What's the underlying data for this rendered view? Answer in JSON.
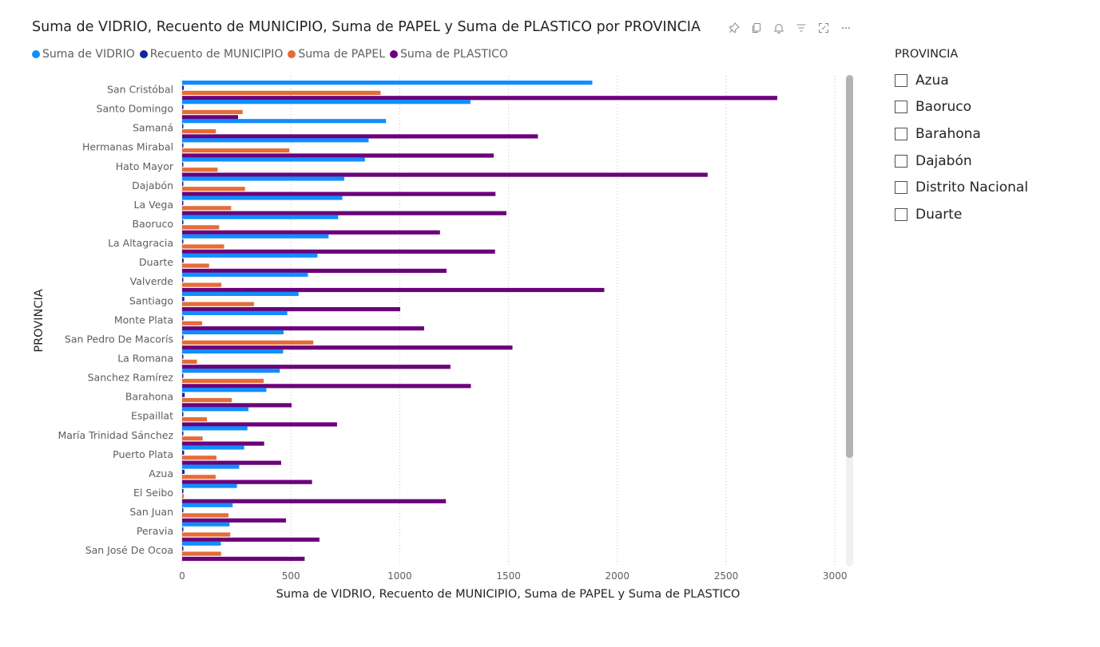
{
  "visual": {
    "title": "Suma de VIDRIO, Recuento de MUNICIPIO, Suma de PAPEL y Suma de PLASTICO por PROVINCIA",
    "toolbar_icons": [
      "pin-icon",
      "copy-icon",
      "bell-icon",
      "filter-icon",
      "focus-mode-icon",
      "more-options-icon"
    ]
  },
  "chart_data": {
    "type": "bar",
    "orientation": "horizontal",
    "title": "Suma de VIDRIO, Recuento de MUNICIPIO, Suma de PAPEL y Suma de PLASTICO por PROVINCIA",
    "xlabel": "Suma de VIDRIO, Recuento de MUNICIPIO, Suma de PAPEL y Suma de PLASTICO",
    "ylabel": "PROVINCIA",
    "xlim": [
      0,
      3000
    ],
    "xticks": [
      0,
      500,
      1000,
      1500,
      2000,
      2500,
      3000
    ],
    "grid": "vertical dotted",
    "legend_position": "top-left",
    "categories": [
      "San Cristóbal",
      "Santo Domingo",
      "Samaná",
      "Hermanas Mirabal",
      "Hato Mayor",
      "Dajabón",
      "La Vega",
      "Baoruco",
      "La Altagracia",
      "Duarte",
      "Valverde",
      "Santiago",
      "Monte Plata",
      "San Pedro De Macorís",
      "La Romana",
      "Sanchez Ramírez",
      "Barahona",
      "Espaillat",
      "María Trinidad Sánchez",
      "Puerto Plata",
      "Azua",
      "El Seibo",
      "San Juan",
      "Peravia",
      "San José De Ocoa"
    ],
    "series": [
      {
        "name": "Suma de VIDRIO",
        "color": "#118DFF",
        "values": [
          1885,
          1325,
          937,
          857,
          840,
          745,
          736,
          717,
          673,
          622,
          578,
          535,
          483,
          466,
          464,
          449,
          387,
          305,
          300,
          285,
          262,
          252,
          232,
          218,
          178
        ]
      },
      {
        "name": "Recuento de MUNICIPIO",
        "color": "#12239E",
        "values": [
          8,
          6,
          5,
          5,
          5,
          5,
          5,
          5,
          5,
          7,
          5,
          10,
          6,
          6,
          3,
          5,
          12,
          5,
          5,
          9,
          11,
          6,
          4,
          4,
          3
        ]
      },
      {
        "name": "Suma de PAPEL",
        "color": "#E66C37",
        "values": [
          912,
          278,
          155,
          493,
          163,
          289,
          225,
          170,
          193,
          124,
          180,
          330,
          92,
          603,
          68,
          375,
          228,
          114,
          94,
          158,
          154,
          8,
          213,
          221,
          179
        ]
      },
      {
        "name": "Suma de PLASTICO",
        "color": "#6B007B",
        "values": [
          2735,
          257,
          1635,
          1432,
          2415,
          1440,
          1490,
          1185,
          1438,
          1215,
          1940,
          1002,
          1112,
          1518,
          1233,
          1327,
          503,
          712,
          377,
          455,
          597,
          1212,
          477,
          631,
          563
        ]
      }
    ]
  },
  "slicer": {
    "title": "PROVINCIA",
    "items": [
      "Azua",
      "Baoruco",
      "Barahona",
      "Dajabón",
      "Distrito Nacional",
      "Duarte"
    ]
  }
}
